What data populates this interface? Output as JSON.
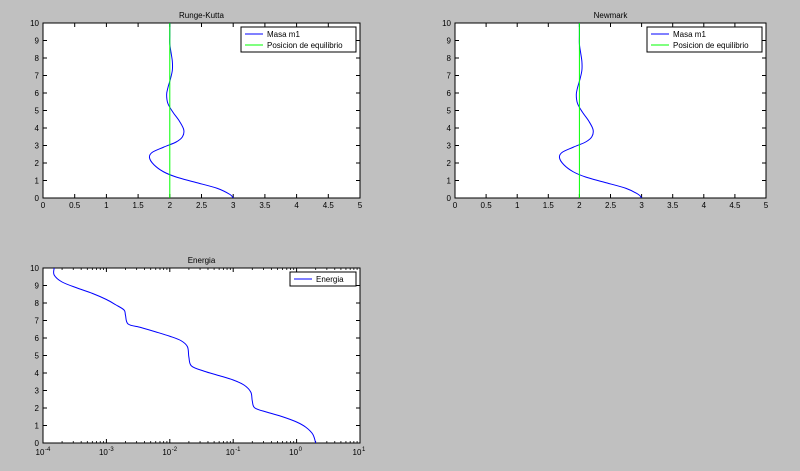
{
  "window": {
    "background": "#c0c0c0"
  },
  "chart_data": [
    {
      "id": "rk",
      "type": "line",
      "title": "Runge-Kutta",
      "xlim": [
        0,
        5
      ],
      "ylim": [
        0,
        10
      ],
      "xscale": "linear",
      "xticks": [
        0,
        0.5,
        1,
        1.5,
        2,
        2.5,
        3,
        3.5,
        4,
        4.5,
        5
      ],
      "xtick_labels": [
        "0",
        "0.5",
        "1",
        "1.5",
        "2",
        "2.5",
        "3",
        "3.5",
        "4",
        "4.5",
        "5"
      ],
      "yticks": [
        0,
        1,
        2,
        3,
        4,
        5,
        6,
        7,
        8,
        9,
        10
      ],
      "ytick_labels": [
        "0",
        "1",
        "2",
        "3",
        "4",
        "5",
        "6",
        "7",
        "8",
        "9",
        "10"
      ],
      "grid": false,
      "legend": "top-right",
      "series": [
        {
          "name": "Masa m1",
          "color": "#0000ff",
          "x": [
            3.0,
            2.95,
            2.75,
            2.4,
            2.1,
            1.9,
            1.75,
            1.68,
            1.72,
            1.9,
            2.1,
            2.2,
            2.22,
            2.15,
            2.05,
            1.97,
            1.95,
            1.97,
            2.01,
            2.04,
            2.04,
            2.02,
            2.0,
            2.0,
            2.0
          ],
          "y": [
            0.0,
            0.2,
            0.55,
            0.9,
            1.2,
            1.5,
            1.9,
            2.3,
            2.6,
            2.9,
            3.2,
            3.5,
            3.9,
            4.4,
            4.9,
            5.4,
            5.9,
            6.3,
            6.8,
            7.3,
            7.8,
            8.3,
            8.8,
            9.3,
            10.0
          ]
        },
        {
          "name": "Posicion de equilibrio",
          "color": "#00ff00",
          "x": [
            2.0,
            2.0
          ],
          "y": [
            0.0,
            10.0
          ]
        }
      ]
    },
    {
      "id": "nm",
      "type": "line",
      "title": "Newmark",
      "xlim": [
        0,
        5
      ],
      "ylim": [
        0,
        10
      ],
      "xscale": "linear",
      "xticks": [
        0,
        0.5,
        1,
        1.5,
        2,
        2.5,
        3,
        3.5,
        4,
        4.5,
        5
      ],
      "xtick_labels": [
        "0",
        "0.5",
        "1",
        "1.5",
        "2",
        "2.5",
        "3",
        "3.5",
        "4",
        "4.5",
        "5"
      ],
      "yticks": [
        0,
        1,
        2,
        3,
        4,
        5,
        6,
        7,
        8,
        9,
        10
      ],
      "ytick_labels": [
        "0",
        "1",
        "2",
        "3",
        "4",
        "5",
        "6",
        "7",
        "8",
        "9",
        "10"
      ],
      "grid": false,
      "legend": "top-right",
      "series": [
        {
          "name": "Masa m1",
          "color": "#0000ff",
          "x": [
            3.0,
            2.95,
            2.75,
            2.4,
            2.1,
            1.9,
            1.75,
            1.68,
            1.72,
            1.9,
            2.1,
            2.2,
            2.22,
            2.15,
            2.05,
            1.97,
            1.95,
            1.97,
            2.01,
            2.04,
            2.04,
            2.02,
            2.0,
            2.0,
            2.0
          ],
          "y": [
            0.0,
            0.2,
            0.55,
            0.9,
            1.2,
            1.5,
            1.9,
            2.3,
            2.6,
            2.9,
            3.2,
            3.5,
            3.9,
            4.4,
            4.9,
            5.4,
            5.9,
            6.3,
            6.8,
            7.3,
            7.8,
            8.3,
            8.8,
            9.3,
            10.0
          ]
        },
        {
          "name": "Posicion de equilibrio",
          "color": "#00ff00",
          "x": [
            2.0,
            2.0
          ],
          "y": [
            0.0,
            10.0
          ]
        }
      ]
    },
    {
      "id": "en",
      "type": "line",
      "title": "Energia",
      "xlim": [
        0.0001,
        10
      ],
      "ylim": [
        0,
        10
      ],
      "xscale": "log",
      "xticks": [
        0.0001,
        0.001,
        0.01,
        0.1,
        1,
        10
      ],
      "xtick_labels": [
        {
          "base": "10",
          "exp": "-4"
        },
        {
          "base": "10",
          "exp": "-3"
        },
        {
          "base": "10",
          "exp": "-2"
        },
        {
          "base": "10",
          "exp": "-1"
        },
        {
          "base": "10",
          "exp": "0"
        },
        {
          "base": "10",
          "exp": "1"
        }
      ],
      "yticks": [
        0,
        1,
        2,
        3,
        4,
        5,
        6,
        7,
        8,
        9,
        10
      ],
      "ytick_labels": [
        "0",
        "1",
        "2",
        "3",
        "4",
        "5",
        "6",
        "7",
        "8",
        "9",
        "10"
      ],
      "grid": false,
      "legend": "top-right",
      "series": [
        {
          "name": "Energia",
          "color": "#0000ff",
          "x": [
            2.0,
            1.8,
            1.4,
            1.0,
            0.6,
            0.35,
            0.22,
            0.2,
            0.19,
            0.15,
            0.1,
            0.06,
            0.035,
            0.022,
            0.02,
            0.019,
            0.015,
            0.01,
            0.006,
            0.0035,
            0.0022,
            0.002,
            0.0019,
            0.0014,
            0.001,
            0.0006,
            0.00035,
            0.0002,
            0.00015,
            0.00015
          ],
          "y": [
            0.0,
            0.5,
            0.9,
            1.2,
            1.5,
            1.75,
            2.0,
            2.4,
            2.9,
            3.3,
            3.6,
            3.85,
            4.1,
            4.4,
            4.9,
            5.5,
            5.85,
            6.1,
            6.35,
            6.6,
            6.8,
            7.3,
            7.6,
            7.9,
            8.2,
            8.55,
            8.85,
            9.2,
            9.6,
            10.0
          ]
        }
      ]
    }
  ]
}
